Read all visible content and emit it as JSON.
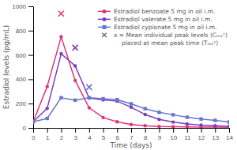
{
  "chart_data": {
    "type": "line",
    "xlabel": "Time (days)",
    "ylabel": "Estradiol levels (pg/mL)",
    "xlim": [
      0,
      14
    ],
    "ylim": [
      0,
      1000
    ],
    "xticks": [
      0,
      1,
      2,
      3,
      4,
      5,
      6,
      7,
      8,
      9,
      10,
      11,
      12,
      13,
      14
    ],
    "yticks": [
      0,
      200,
      400,
      600,
      800,
      1000
    ],
    "x": [
      0,
      1,
      2,
      3,
      4,
      5,
      6,
      7,
      8,
      9,
      10,
      11,
      12,
      13,
      14
    ],
    "series": [
      {
        "name": "Estradiol benzoate 5 mg in oil i.m.",
        "color": "#e0357a",
        "marker": "circle",
        "values": [
          50,
          340,
          750,
          390,
          165,
          85,
          50,
          28,
          18,
          12,
          10,
          8,
          7,
          6,
          5
        ],
        "peak_x": 2,
        "peak_y": 940
      },
      {
        "name": "Estradiol valerate 5 mg in oil i.m.",
        "color": "#7b3fc0",
        "marker": "circle",
        "values": [
          50,
          160,
          610,
          510,
          245,
          230,
          220,
          170,
          110,
          70,
          48,
          33,
          23,
          18,
          13
        ],
        "peak_x": 3,
        "peak_y": 660
      },
      {
        "name": "Estradiol cypionate 5 mg in oil i.m.",
        "color": "#6677cc",
        "marker": "square",
        "values": [
          50,
          78,
          248,
          228,
          248,
          240,
          232,
          198,
          158,
          128,
          108,
          88,
          73,
          62,
          48
        ],
        "peak_x": 4,
        "peak_y": 335
      }
    ],
    "annotations": [
      "x = Mean individual peak levels (Cₘₐˣ)",
      "placed at mean peak time (Tₘₐˣ)"
    ],
    "legend": "upper right"
  }
}
